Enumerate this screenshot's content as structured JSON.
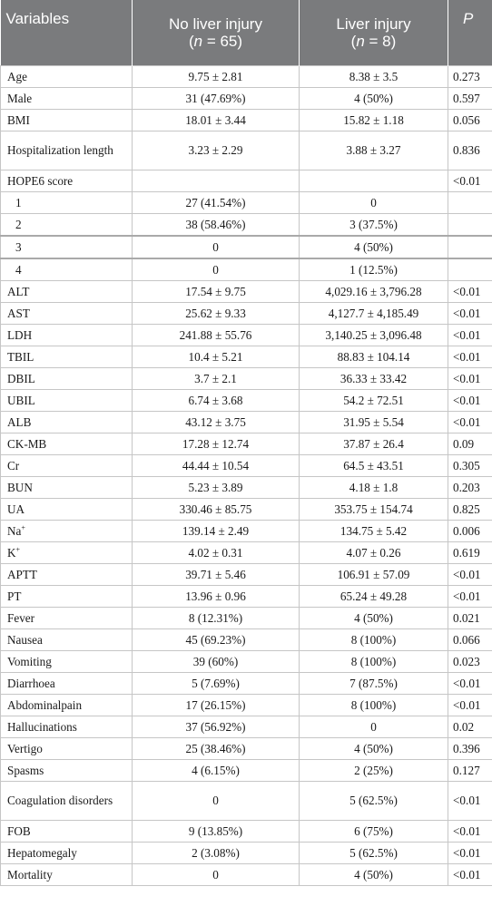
{
  "header": {
    "variables": "Variables",
    "group1_title": "No liver injury",
    "group1_n_label": "n",
    "group1_n_value": " = 65)",
    "group1_n_prefix": "(",
    "group2_title": "Liver injury",
    "group2_n_label": "n",
    "group2_n_value": " = 8)",
    "group2_n_prefix": "(",
    "p": "P"
  },
  "rows": [
    {
      "var": "Age",
      "a": "9.75 ± 2.81",
      "b": "8.38 ± 3.5",
      "p": "0.273"
    },
    {
      "var": "Male",
      "a": "31 (47.69%)",
      "b": "4 (50%)",
      "p": "0.597"
    },
    {
      "var": "BMI",
      "a": "18.01 ± 3.44",
      "b": "15.82 ± 1.18",
      "p": "0.056"
    },
    {
      "var": "Hospitalization length",
      "a": "3.23 ± 2.29",
      "b": "3.88 ± 3.27",
      "p": "0.836"
    },
    {
      "var": "HOPE6 score",
      "a": "",
      "b": "",
      "p": "<0.01"
    },
    {
      "var": "1",
      "a": "27 (41.54%)",
      "b": "0",
      "p": ""
    },
    {
      "var": "2",
      "a": "38 (58.46%)",
      "b": "3 (37.5%)",
      "p": ""
    },
    {
      "var": "3",
      "a": "0",
      "b": "4 (50%)",
      "p": ""
    },
    {
      "var": "4",
      "a": "0",
      "b": "1 (12.5%)",
      "p": ""
    },
    {
      "var": "ALT",
      "a": "17.54 ± 9.75",
      "b": "4,029.16 ± 3,796.28",
      "p": "<0.01"
    },
    {
      "var": "AST",
      "a": "25.62 ± 9.33",
      "b": "4,127.7 ± 4,185.49",
      "p": "<0.01"
    },
    {
      "var": "LDH",
      "a": "241.88 ± 55.76",
      "b": "3,140.25 ± 3,096.48",
      "p": "<0.01"
    },
    {
      "var": "TBIL",
      "a": "10.4 ± 5.21",
      "b": "88.83 ± 104.14",
      "p": "<0.01"
    },
    {
      "var": "DBIL",
      "a": "3.7 ± 2.1",
      "b": "36.33 ± 33.42",
      "p": "<0.01"
    },
    {
      "var": "UBIL",
      "a": "6.74 ± 3.68",
      "b": "54.2 ± 72.51",
      "p": "<0.01"
    },
    {
      "var": "ALB",
      "a": "43.12 ± 3.75",
      "b": "31.95 ± 5.54",
      "p": "<0.01"
    },
    {
      "var": "CK-MB",
      "a": "17.28 ± 12.74",
      "b": "37.87 ± 26.4",
      "p": "0.09"
    },
    {
      "var": "Cr",
      "a": "44.44 ± 10.54",
      "b": "64.5 ± 43.51",
      "p": "0.305"
    },
    {
      "var": "BUN",
      "a": "5.23 ± 3.89",
      "b": "4.18 ± 1.8",
      "p": "0.203"
    },
    {
      "var": "UA",
      "a": "330.46 ± 85.75",
      "b": "353.75 ± 154.74",
      "p": "0.825"
    },
    {
      "var": "Na",
      "sup": "+",
      "a": "139.14 ± 2.49",
      "b": "134.75 ± 5.42",
      "p": "0.006"
    },
    {
      "var": "K",
      "sup": "+",
      "a": "4.02 ± 0.31",
      "b": "4.07 ± 0.26",
      "p": "0.619"
    },
    {
      "var": "APTT",
      "a": "39.71 ± 5.46",
      "b": "106.91 ± 57.09",
      "p": "<0.01"
    },
    {
      "var": "PT",
      "a": "13.96 ± 0.96",
      "b": "65.24 ± 49.28",
      "p": "<0.01"
    },
    {
      "var": "Fever",
      "a": "8 (12.31%)",
      "b": "4 (50%)",
      "p": "0.021"
    },
    {
      "var": "Nausea",
      "a": "45 (69.23%)",
      "b": "8 (100%)",
      "p": "0.066"
    },
    {
      "var": "Vomiting",
      "a": "39 (60%)",
      "b": "8 (100%)",
      "p": "0.023"
    },
    {
      "var": "Diarrhoea",
      "a": "5 (7.69%)",
      "b": "7 (87.5%)",
      "p": "<0.01"
    },
    {
      "var": "Abdominalpain",
      "a": "17 (26.15%)",
      "b": "8 (100%)",
      "p": "<0.01"
    },
    {
      "var": "Hallucinations",
      "a": "37 (56.92%)",
      "b": "0",
      "p": "0.02"
    },
    {
      "var": "Vertigo",
      "a": "25 (38.46%)",
      "b": "4 (50%)",
      "p": "0.396"
    },
    {
      "var": "Spasms",
      "a": "4 (6.15%)",
      "b": "2 (25%)",
      "p": "0.127"
    },
    {
      "var": "Coagulation disorders",
      "a": "0",
      "b": "5 (62.5%)",
      "p": "<0.01"
    },
    {
      "var": "FOB",
      "a": "9 (13.85%)",
      "b": "6 (75%)",
      "p": "<0.01"
    },
    {
      "var": "Hepatomegaly",
      "a": "2 (3.08%)",
      "b": "5 (62.5%)",
      "p": "<0.01"
    },
    {
      "var": "Mortality",
      "a": "0",
      "b": "4 (50%)",
      "p": "<0.01"
    }
  ]
}
